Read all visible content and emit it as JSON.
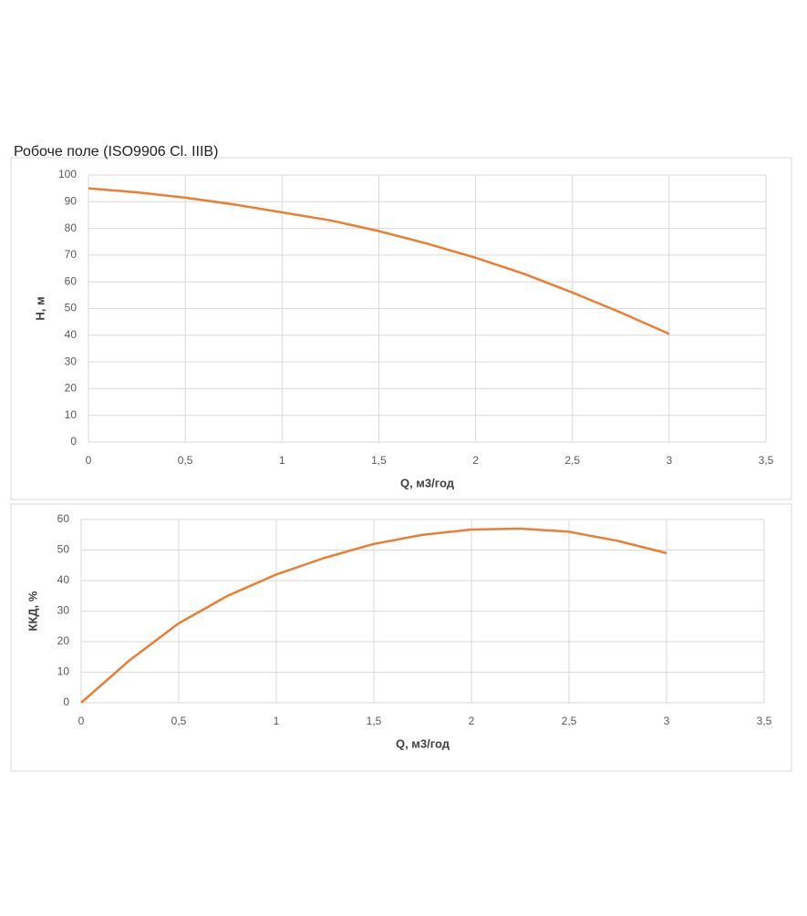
{
  "title": "Робоче поле (ISO9906 Cl. IIIB)",
  "chart_data": [
    {
      "type": "line",
      "x_label": "Q, м3/год",
      "y_label": "H, м",
      "x": [
        0,
        0.25,
        0.5,
        0.75,
        1,
        1.25,
        1.5,
        1.75,
        2,
        2.25,
        2.5,
        2.75,
        3
      ],
      "series": [
        {
          "name": "H",
          "color": "#ed7d31",
          "values": [
            95,
            93.5,
            91.5,
            89,
            86,
            83,
            79,
            74.3,
            69,
            63,
            56,
            48.5,
            40.5
          ]
        }
      ],
      "xlim": [
        0,
        3.5
      ],
      "ylim": [
        0,
        100
      ],
      "xticks": [
        0,
        {
          "value": 0.5,
          "label": "0,5"
        },
        1,
        {
          "value": 1.5,
          "label": "1,5"
        },
        2,
        {
          "value": 2.5,
          "label": "2,5"
        },
        3,
        {
          "value": 3.5,
          "label": "3,5"
        }
      ],
      "yticks": [
        0,
        10,
        20,
        30,
        40,
        50,
        60,
        70,
        80,
        90,
        100
      ],
      "grid": true
    },
    {
      "type": "line",
      "x_label": "Q, м3/год",
      "y_label": "ККД, %",
      "x": [
        0,
        0.25,
        0.5,
        0.75,
        1,
        1.25,
        1.5,
        1.75,
        2,
        2.25,
        2.5,
        2.75,
        3
      ],
      "series": [
        {
          "name": "ККД",
          "color": "#ed7d31",
          "values": [
            0,
            14,
            26,
            35,
            42,
            47.5,
            52,
            55,
            56.7,
            57,
            56,
            53,
            49
          ]
        }
      ],
      "xlim": [
        0,
        3.5
      ],
      "ylim": [
        0,
        60
      ],
      "xticks": [
        0,
        {
          "value": 0.5,
          "label": "0,5"
        },
        1,
        {
          "value": 1.5,
          "label": "1,5"
        },
        2,
        {
          "value": 2.5,
          "label": "2,5"
        },
        3,
        {
          "value": 3.5,
          "label": "3,5"
        }
      ],
      "yticks": [
        0,
        10,
        20,
        30,
        40,
        50,
        60
      ],
      "grid": true
    }
  ]
}
